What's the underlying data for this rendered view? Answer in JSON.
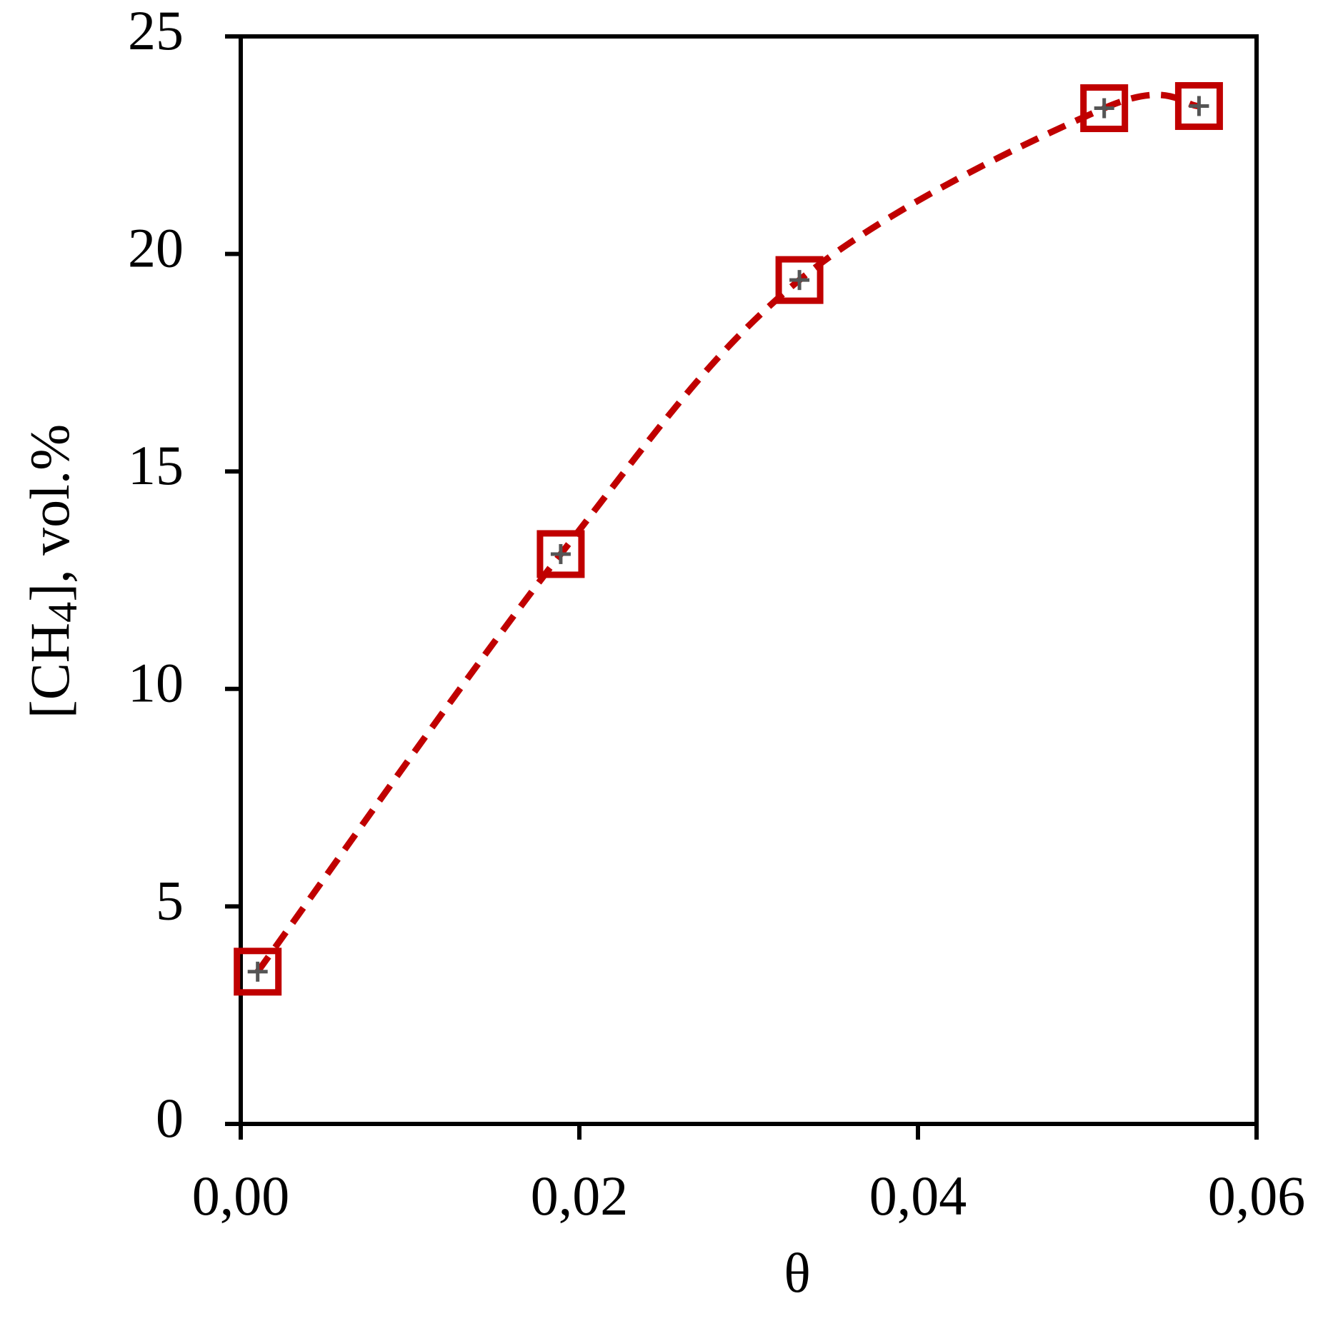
{
  "chart_data": {
    "type": "line",
    "xlabel": "θ",
    "ylabel": [
      "[CH",
      "4",
      "], vol.%"
    ],
    "x": [
      0.001,
      0.0189,
      0.033,
      0.051,
      0.0566
    ],
    "values": [
      3.5,
      13.1,
      19.4,
      23.35,
      23.4
    ],
    "color": "#c00000",
    "xlim": [
      0,
      0.06
    ],
    "xticks": [
      {
        "value": 0,
        "label": "0,00"
      },
      {
        "value": 0.02,
        "label": "0,02"
      },
      {
        "value": 0.04,
        "label": "0,04"
      },
      {
        "value": 0.06,
        "label": "0,06"
      }
    ],
    "ylim": [
      0,
      25
    ],
    "yticks": [
      0,
      5,
      10,
      15,
      20,
      25
    ],
    "grid": false
  }
}
